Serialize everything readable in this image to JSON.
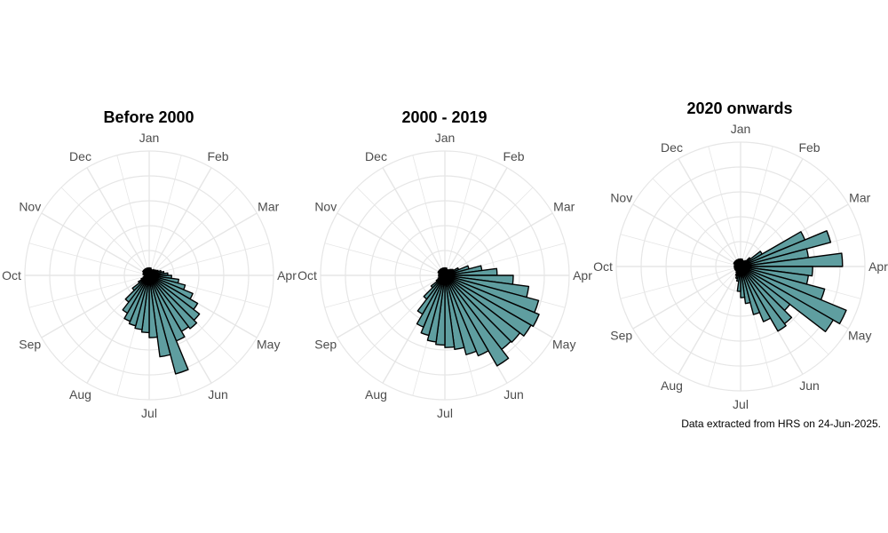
{
  "caption": "Data extracted from HRS on 24-Jun-2025.",
  "style": {
    "bar_fill": "#5f9ea0",
    "bar_stroke": "#000000",
    "grid_color": "#e6e6e6",
    "label_color": "#4d4d4d"
  },
  "chart_data": [
    {
      "type": "bar",
      "polar": true,
      "title": "Before 2000",
      "month_labels": [
        "Jan",
        "Feb",
        "Mar",
        "Apr",
        "May",
        "Jun",
        "Jul",
        "Aug",
        "Sep",
        "Oct",
        "Nov",
        "Dec"
      ],
      "grid": true,
      "values": [
        0.06,
        0.06,
        0.05,
        0.05,
        0.05,
        0.06,
        0.06,
        0.07,
        0.08,
        0.1,
        0.12,
        0.15,
        0.18,
        0.24,
        0.3,
        0.38,
        0.45,
        0.51,
        0.54,
        0.52,
        0.57,
        0.82,
        0.66,
        0.5,
        0.46,
        0.44,
        0.42,
        0.4,
        0.35,
        0.27,
        0.17,
        0.1,
        0.07,
        0.05,
        0.04,
        0.04,
        0.04,
        0.05,
        0.05,
        0.05,
        0.06,
        0.06,
        0.06,
        0.06,
        0.06,
        0.06,
        0.06,
        0.06
      ]
    },
    {
      "type": "bar",
      "polar": true,
      "title": "2000 - 2019",
      "month_labels": [
        "Jan",
        "Feb",
        "Mar",
        "Apr",
        "May",
        "Jun",
        "Jul",
        "Aug",
        "Sep",
        "Oct",
        "Nov",
        "Dec"
      ],
      "grid": true,
      "values": [
        0.06,
        0.06,
        0.05,
        0.05,
        0.05,
        0.06,
        0.07,
        0.08,
        0.12,
        0.2,
        0.3,
        0.42,
        0.55,
        0.68,
        0.78,
        0.82,
        0.8,
        0.76,
        0.75,
        0.84,
        0.7,
        0.66,
        0.6,
        0.58,
        0.56,
        0.54,
        0.5,
        0.45,
        0.36,
        0.24,
        0.14,
        0.08,
        0.06,
        0.05,
        0.05,
        0.05,
        0.05,
        0.05,
        0.05,
        0.06,
        0.06,
        0.06,
        0.06,
        0.06,
        0.06,
        0.06,
        0.06,
        0.06
      ]
    },
    {
      "type": "bar",
      "polar": true,
      "title": "2020 onwards",
      "month_labels": [
        "Jan",
        "Feb",
        "Mar",
        "Apr",
        "May",
        "Jun",
        "Jul",
        "Aug",
        "Sep",
        "Oct",
        "Nov",
        "Dec"
      ],
      "grid": true,
      "values": [
        0.06,
        0.06,
        0.05,
        0.05,
        0.05,
        0.06,
        0.1,
        0.2,
        0.56,
        0.75,
        0.55,
        0.82,
        0.58,
        0.55,
        0.7,
        0.92,
        0.86,
        0.5,
        0.58,
        0.6,
        0.48,
        0.4,
        0.3,
        0.25,
        0.2,
        0.12,
        0.1,
        0.08,
        0.06,
        0.05,
        0.05,
        0.05,
        0.05,
        0.05,
        0.05,
        0.05,
        0.05,
        0.05,
        0.05,
        0.06,
        0.06,
        0.06,
        0.06,
        0.06,
        0.06,
        0.06,
        0.06,
        0.06
      ]
    }
  ]
}
